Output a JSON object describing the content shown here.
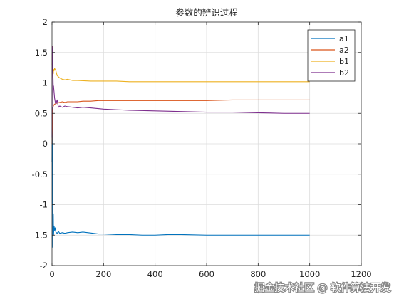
{
  "chart_data": {
    "type": "line",
    "title": "参数的辨识过程",
    "xlabel": "",
    "ylabel": "",
    "xlim": [
      0,
      1200
    ],
    "ylim": [
      -2,
      2
    ],
    "xticks": [
      0,
      200,
      400,
      600,
      800,
      1000,
      1200
    ],
    "yticks": [
      -2,
      -1.5,
      -1,
      -0.5,
      0,
      0.5,
      1,
      1.5,
      2
    ],
    "grid": true,
    "legend_position": "top-right",
    "series": [
      {
        "name": "a1",
        "color": "#0072bd",
        "x": [
          0,
          1,
          2,
          3,
          4,
          5,
          6,
          8,
          10,
          12,
          15,
          20,
          25,
          30,
          40,
          50,
          60,
          80,
          100,
          120,
          140,
          160,
          180,
          200,
          250,
          300,
          350,
          400,
          450,
          500,
          600,
          700,
          800,
          900,
          1000
        ],
        "y": [
          -0.3,
          0.6,
          -0.9,
          -1.7,
          -1.25,
          -1.15,
          -1.5,
          -1.35,
          -1.42,
          -1.38,
          -1.45,
          -1.47,
          -1.44,
          -1.47,
          -1.46,
          -1.47,
          -1.46,
          -1.45,
          -1.46,
          -1.45,
          -1.46,
          -1.47,
          -1.48,
          -1.48,
          -1.49,
          -1.49,
          -1.5,
          -1.5,
          -1.49,
          -1.49,
          -1.5,
          -1.5,
          -1.5,
          -1.5,
          -1.5
        ]
      },
      {
        "name": "a2",
        "color": "#d95319",
        "x": [
          0,
          1,
          2,
          3,
          4,
          5,
          6,
          8,
          10,
          15,
          20,
          30,
          40,
          50,
          60,
          80,
          100,
          120,
          150,
          180,
          200,
          250,
          300,
          400,
          500,
          600,
          700,
          800,
          900,
          1000
        ],
        "y": [
          0,
          0.2,
          0.45,
          0.55,
          0.6,
          0.62,
          0.63,
          0.64,
          0.65,
          0.66,
          0.67,
          0.68,
          0.69,
          0.68,
          0.69,
          0.69,
          0.69,
          0.7,
          0.7,
          0.71,
          0.71,
          0.71,
          0.71,
          0.71,
          0.71,
          0.71,
          0.72,
          0.72,
          0.72,
          0.72
        ]
      },
      {
        "name": "b1",
        "color": "#edb120",
        "x": [
          0,
          1,
          2,
          3,
          4,
          5,
          6,
          8,
          10,
          12,
          15,
          20,
          25,
          30,
          40,
          50,
          60,
          80,
          100,
          150,
          200,
          250,
          300,
          400,
          500,
          600,
          700,
          800,
          900,
          1000
        ],
        "y": [
          1.3,
          1.5,
          1.4,
          1.6,
          1.2,
          1.15,
          1.22,
          1.2,
          1.24,
          1.22,
          1.2,
          1.12,
          1.1,
          1.08,
          1.06,
          1.05,
          1.06,
          1.04,
          1.04,
          1.03,
          1.03,
          1.03,
          1.02,
          1.02,
          1.02,
          1.02,
          1.02,
          1.02,
          1.02,
          1.02
        ]
      },
      {
        "name": "b2",
        "color": "#7e2f8e",
        "x": [
          0,
          1,
          2,
          3,
          4,
          5,
          6,
          8,
          10,
          12,
          15,
          20,
          25,
          30,
          40,
          50,
          60,
          80,
          100,
          120,
          150,
          200,
          250,
          300,
          400,
          500,
          600,
          700,
          800,
          900,
          1000
        ],
        "y": [
          0.1,
          1.6,
          1.3,
          1.55,
          1.1,
          0.9,
          0.95,
          0.85,
          0.75,
          0.7,
          0.65,
          0.72,
          0.6,
          0.62,
          0.6,
          0.62,
          0.61,
          0.6,
          0.59,
          0.6,
          0.59,
          0.57,
          0.56,
          0.55,
          0.54,
          0.53,
          0.52,
          0.52,
          0.51,
          0.5,
          0.5
        ]
      }
    ]
  },
  "watermark": "掘金技术社区 @ 软件算法开发"
}
